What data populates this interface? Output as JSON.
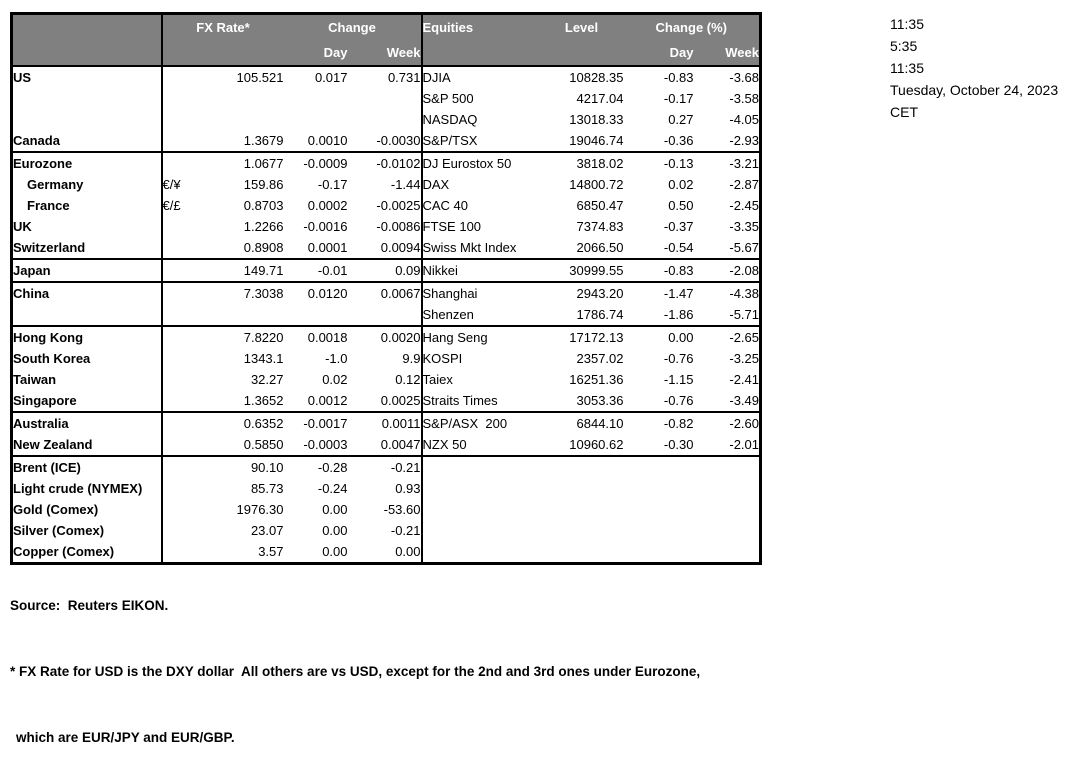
{
  "timestamps": {
    "lines": [
      "11:35",
      "5:35",
      "11:35",
      "Tuesday, October 24, 2023",
      "CET"
    ]
  },
  "table": {
    "fx_header": {
      "rate": "FX Rate*",
      "change": "Change",
      "day": "Day",
      "week": "Week"
    },
    "eq_header": {
      "title": "Equities",
      "level": "Level",
      "change": "Change (%)",
      "day": "Day",
      "week": "Week"
    },
    "rows": [
      {
        "country": "US",
        "pair": "",
        "rate": "105.521",
        "day": "0.017",
        "week": "0.731",
        "equity": "DJIA",
        "level": "10828.35",
        "eqDay": "-0.83",
        "eqWeek": "-3.68",
        "section": false,
        "indent": false
      },
      {
        "country": "",
        "pair": "",
        "rate": "",
        "day": "",
        "week": "",
        "equity": "S&P 500",
        "level": "4217.04",
        "eqDay": "-0.17",
        "eqWeek": "-3.58",
        "section": false,
        "indent": false
      },
      {
        "country": "",
        "pair": "",
        "rate": "",
        "day": "",
        "week": "",
        "equity": "NASDAQ",
        "level": "13018.33",
        "eqDay": "0.27",
        "eqWeek": "-4.05",
        "section": false,
        "indent": false
      },
      {
        "country": "Canada",
        "pair": "",
        "rate": "1.3679",
        "day": "0.0010",
        "week": "-0.0030",
        "equity": "S&P/TSX",
        "level": "19046.74",
        "eqDay": "-0.36",
        "eqWeek": "-2.93",
        "section": false,
        "indent": false
      },
      {
        "country": "Eurozone",
        "pair": "",
        "rate": "1.0677",
        "day": "-0.0009",
        "week": "-0.0102",
        "equity": "DJ Eurostox 50",
        "level": "3818.02",
        "eqDay": "-0.13",
        "eqWeek": "-3.21",
        "section": true,
        "indent": false
      },
      {
        "country": "Germany",
        "pair": "€/¥",
        "rate": "159.86",
        "day": "-0.17",
        "week": "-1.44",
        "equity": "DAX",
        "level": "14800.72",
        "eqDay": "0.02",
        "eqWeek": "-2.87",
        "section": false,
        "indent": true
      },
      {
        "country": "France",
        "pair": "€/£",
        "rate": "0.8703",
        "day": "0.0002",
        "week": "-0.0025",
        "equity": "CAC 40",
        "level": "6850.47",
        "eqDay": "0.50",
        "eqWeek": "-2.45",
        "section": false,
        "indent": true
      },
      {
        "country": "UK",
        "pair": "",
        "rate": "1.2266",
        "day": "-0.0016",
        "week": "-0.0086",
        "equity": "FTSE 100",
        "level": "7374.83",
        "eqDay": "-0.37",
        "eqWeek": "-3.35",
        "section": false,
        "indent": false
      },
      {
        "country": "Switzerland",
        "pair": "",
        "rate": "0.8908",
        "day": "0.0001",
        "week": "0.0094",
        "equity": "Swiss Mkt Index",
        "level": "2066.50",
        "eqDay": "-0.54",
        "eqWeek": "-5.67",
        "section": false,
        "indent": false
      },
      {
        "country": "Japan",
        "pair": "",
        "rate": "149.71",
        "day": "-0.01",
        "week": "0.09",
        "equity": "Nikkei",
        "level": "30999.55",
        "eqDay": "-0.83",
        "eqWeek": "-2.08",
        "section": true,
        "indent": false
      },
      {
        "country": "China",
        "pair": "",
        "rate": "7.3038",
        "day": "0.0120",
        "week": "0.0067",
        "equity": "Shanghai",
        "level": "2943.20",
        "eqDay": "-1.47",
        "eqWeek": "-4.38",
        "section": true,
        "indent": false
      },
      {
        "country": "",
        "pair": "",
        "rate": "",
        "day": "",
        "week": "",
        "equity": "Shenzen",
        "level": "1786.74",
        "eqDay": "-1.86",
        "eqWeek": "-5.71",
        "section": false,
        "indent": false
      },
      {
        "country": "Hong Kong",
        "pair": "",
        "rate": "7.8220",
        "day": "0.0018",
        "week": "0.0020",
        "equity": "Hang Seng",
        "level": "17172.13",
        "eqDay": "0.00",
        "eqWeek": "-2.65",
        "section": true,
        "indent": false
      },
      {
        "country": "South Korea",
        "pair": "",
        "rate": "1343.1",
        "day": "-1.0",
        "week": "9.9",
        "equity": "KOSPI",
        "level": "2357.02",
        "eqDay": "-0.76",
        "eqWeek": "-3.25",
        "section": false,
        "indent": false
      },
      {
        "country": "Taiwan",
        "pair": "",
        "rate": "32.27",
        "day": "0.02",
        "week": "0.12",
        "equity": "Taiex",
        "level": "16251.36",
        "eqDay": "-1.15",
        "eqWeek": "-2.41",
        "section": false,
        "indent": false
      },
      {
        "country": "Singapore",
        "pair": "",
        "rate": "1.3652",
        "day": "0.0012",
        "week": "0.0025",
        "equity": "Straits Times",
        "level": "3053.36",
        "eqDay": "-0.76",
        "eqWeek": "-3.49",
        "section": false,
        "indent": false
      },
      {
        "country": "Australia",
        "pair": "",
        "rate": "0.6352",
        "day": "-0.0017",
        "week": "0.0011",
        "equity": "S&P/ASX  200",
        "level": "6844.10",
        "eqDay": "-0.82",
        "eqWeek": "-2.60",
        "section": true,
        "indent": false
      },
      {
        "country": "New Zealand",
        "pair": "",
        "rate": "0.5850",
        "day": "-0.0003",
        "week": "0.0047",
        "equity": "NZX 50",
        "level": "10960.62",
        "eqDay": "-0.30",
        "eqWeek": "-2.01",
        "section": false,
        "indent": false
      },
      {
        "country": "Brent (ICE)",
        "pair": "",
        "rate": "90.10",
        "day": "-0.28",
        "week": "-0.21",
        "equity": "",
        "level": "",
        "eqDay": "",
        "eqWeek": "",
        "section": true,
        "indent": false
      },
      {
        "country": "Light crude (NYMEX)",
        "pair": "",
        "rate": "85.73",
        "day": "-0.24",
        "week": "0.93",
        "equity": "",
        "level": "",
        "eqDay": "",
        "eqWeek": "",
        "section": false,
        "indent": false
      },
      {
        "country": "Gold (Comex)",
        "pair": "",
        "rate": "1976.30",
        "day": "0.00",
        "week": "-53.60",
        "equity": "",
        "level": "",
        "eqDay": "",
        "eqWeek": "",
        "section": false,
        "indent": false
      },
      {
        "country": "Silver (Comex)",
        "pair": "",
        "rate": "23.07",
        "day": "0.00",
        "week": "-0.21",
        "equity": "",
        "level": "",
        "eqDay": "",
        "eqWeek": "",
        "section": false,
        "indent": false
      },
      {
        "country": "Copper (Comex)",
        "pair": "",
        "rate": "3.57",
        "day": "0.00",
        "week": "0.00",
        "equity": "",
        "level": "",
        "eqDay": "",
        "eqWeek": "",
        "section": false,
        "indent": false
      }
    ]
  },
  "footer": {
    "source": "Source:  Reuters EIKON.",
    "note1": "* FX Rate for USD is the DXY dollar  All others are vs USD, except for the 2nd and 3rd ones under Eurozone,",
    "note2": "which are EUR/JPY and EUR/GBP."
  },
  "colors": {
    "header_bg": "#808080",
    "header_text": "#ffffff",
    "border": "#000000"
  }
}
